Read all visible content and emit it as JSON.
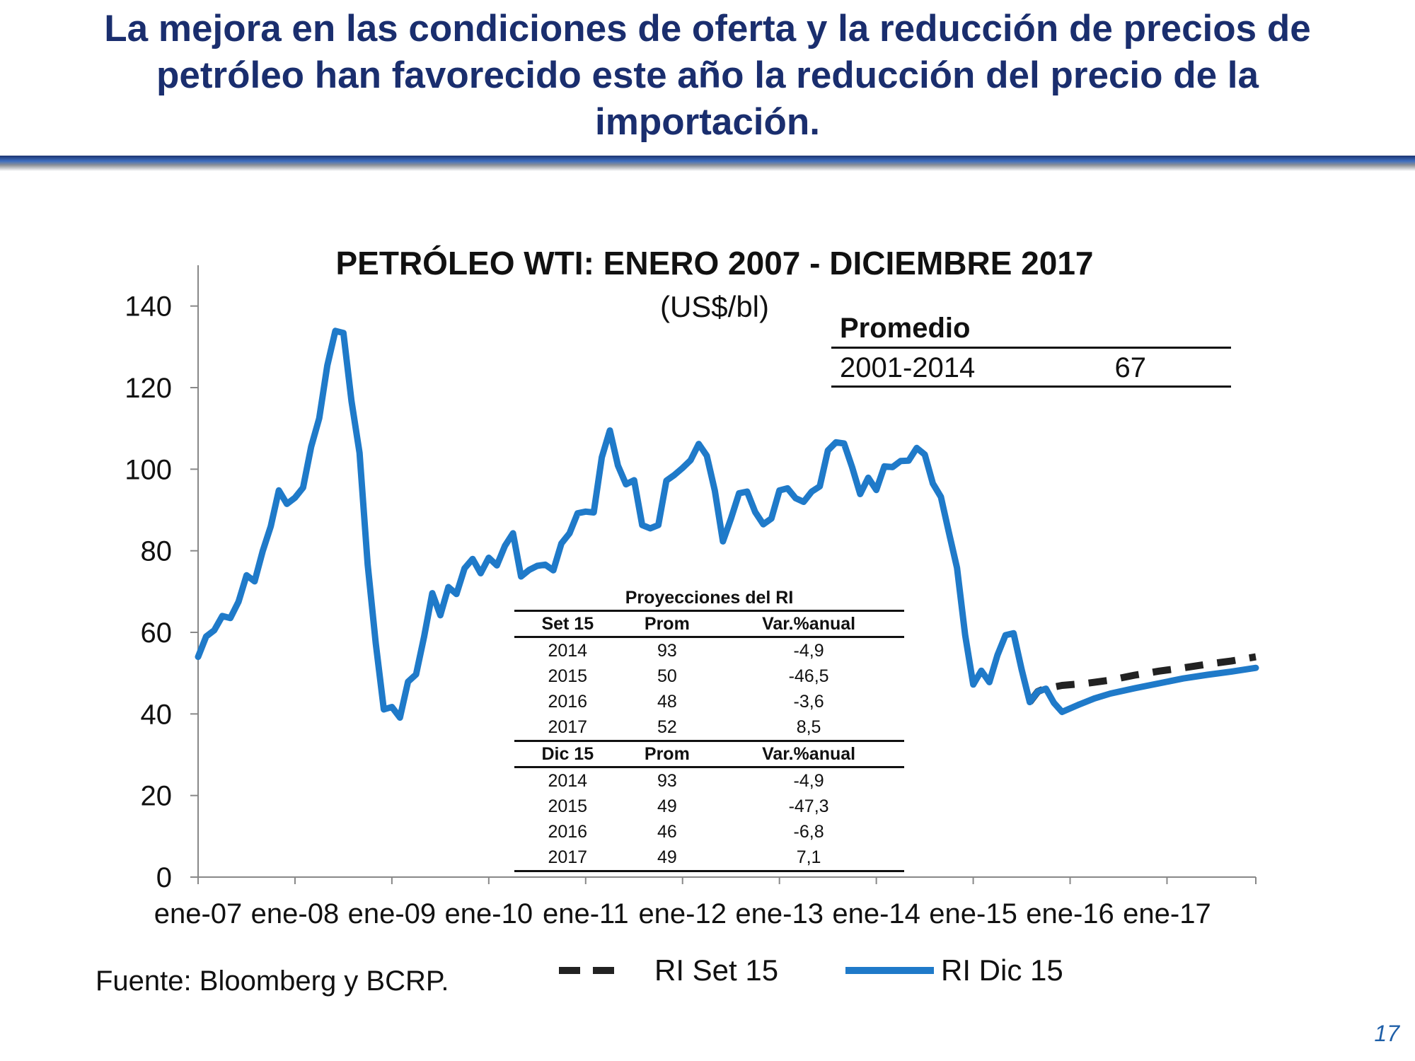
{
  "slide": {
    "title": "La mejora en las condiciones de oferta y la reducción de precios de petróleo han favorecido este año la reducción del precio de la importación.",
    "source": "Fuente: Bloomberg y BCRP.",
    "page_number": "17"
  },
  "colors": {
    "title": "#1a2e6e",
    "rule": "#2a4f9a",
    "dic15": "#1f7ac9",
    "set15": "#222222"
  },
  "promedio": {
    "header": "Promedio",
    "period": "2001-2014",
    "value": "67"
  },
  "projections": {
    "caption": "Proyecciones del RI",
    "columns": [
      "Prom",
      "Var.%anual"
    ],
    "groups": [
      {
        "label": "Set 15",
        "rows": [
          [
            "2014",
            "93",
            "-4,9"
          ],
          [
            "2015",
            "50",
            "-46,5"
          ],
          [
            "2016",
            "48",
            "-3,6"
          ],
          [
            "2017",
            "52",
            "8,5"
          ]
        ]
      },
      {
        "label": "Dic 15",
        "rows": [
          [
            "2014",
            "93",
            "-4,9"
          ],
          [
            "2015",
            "49",
            "-47,3"
          ],
          [
            "2016",
            "46",
            "-6,8"
          ],
          [
            "2017",
            "49",
            "7,1"
          ]
        ]
      }
    ]
  },
  "chart_data": {
    "type": "line",
    "title": "PETRÓLEO WTI: ENERO 2007 - DICIEMBRE 2017",
    "subtitle": "(US$/bl)",
    "ylim": [
      0,
      150
    ],
    "yticks": [
      0,
      20,
      40,
      60,
      80,
      100,
      120,
      140
    ],
    "xlim": [
      "2007-01",
      "2017-12"
    ],
    "xticks": [
      "ene-07",
      "ene-08",
      "ene-09",
      "ene-10",
      "ene-11",
      "ene-12",
      "ene-13",
      "ene-14",
      "ene-15",
      "ene-16",
      "ene-17"
    ],
    "grid": false,
    "legend_position": "bottom",
    "series": [
      {
        "name": "RI Set 15",
        "style": "dashed",
        "color": "#222222",
        "points": [
          [
            "2015-08",
            42.9
          ],
          [
            "2015-09",
            45.5
          ],
          [
            "2015-10",
            46.3
          ],
          [
            "2015-11",
            46.6
          ],
          [
            "2015-12",
            47.0
          ],
          [
            "2016-03",
            47.5
          ],
          [
            "2016-06",
            48.3
          ],
          [
            "2016-09",
            49.5
          ],
          [
            "2016-12",
            50.5
          ],
          [
            "2017-03",
            51.3
          ],
          [
            "2017-06",
            52.2
          ],
          [
            "2017-09",
            53.0
          ],
          [
            "2017-12",
            54.0
          ]
        ]
      },
      {
        "name": "RI Dic 15",
        "style": "solid",
        "color": "#1f7ac9",
        "points": [
          [
            "2007-01",
            54
          ],
          [
            "2007-02",
            59
          ],
          [
            "2007-03",
            60.5
          ],
          [
            "2007-04",
            64
          ],
          [
            "2007-05",
            63.5
          ],
          [
            "2007-06",
            67.5
          ],
          [
            "2007-07",
            74
          ],
          [
            "2007-08",
            72.5
          ],
          [
            "2007-09",
            79.9
          ],
          [
            "2007-10",
            86
          ],
          [
            "2007-11",
            94.8
          ],
          [
            "2007-12",
            91.5
          ],
          [
            "2008-01",
            93
          ],
          [
            "2008-02",
            95.5
          ],
          [
            "2008-03",
            105.5
          ],
          [
            "2008-04",
            112.5
          ],
          [
            "2008-05",
            125.4
          ],
          [
            "2008-06",
            133.9
          ],
          [
            "2008-07",
            133.4
          ],
          [
            "2008-08",
            116.7
          ],
          [
            "2008-09",
            104
          ],
          [
            "2008-10",
            76.6
          ],
          [
            "2008-11",
            57.3
          ],
          [
            "2008-12",
            41.1
          ],
          [
            "2009-01",
            41.7
          ],
          [
            "2009-02",
            39.1
          ],
          [
            "2009-03",
            47.9
          ],
          [
            "2009-04",
            49.7
          ],
          [
            "2009-05",
            59
          ],
          [
            "2009-06",
            69.6
          ],
          [
            "2009-07",
            64.2
          ],
          [
            "2009-08",
            71.1
          ],
          [
            "2009-09",
            69.4
          ],
          [
            "2009-10",
            75.7
          ],
          [
            "2009-11",
            78
          ],
          [
            "2009-12",
            74.5
          ],
          [
            "2010-01",
            78.3
          ],
          [
            "2010-02",
            76.4
          ],
          [
            "2010-03",
            81.2
          ],
          [
            "2010-04",
            84.3
          ],
          [
            "2010-05",
            73.7
          ],
          [
            "2010-06",
            75.3
          ],
          [
            "2010-07",
            76.3
          ],
          [
            "2010-08",
            76.6
          ],
          [
            "2010-09",
            75.2
          ],
          [
            "2010-10",
            81.8
          ],
          [
            "2010-11",
            84.3
          ],
          [
            "2010-12",
            89.2
          ],
          [
            "2011-01",
            89.6
          ],
          [
            "2011-02",
            89.4
          ],
          [
            "2011-03",
            102.9
          ],
          [
            "2011-04",
            109.5
          ],
          [
            "2011-05",
            100.9
          ],
          [
            "2011-06",
            96.3
          ],
          [
            "2011-07",
            97.3
          ],
          [
            "2011-08",
            86.3
          ],
          [
            "2011-09",
            85.5
          ],
          [
            "2011-10",
            86.3
          ],
          [
            "2011-11",
            97.2
          ],
          [
            "2011-12",
            98.6
          ],
          [
            "2012-01",
            100.3
          ],
          [
            "2012-02",
            102.2
          ],
          [
            "2012-03",
            106.2
          ],
          [
            "2012-04",
            103.3
          ],
          [
            "2012-05",
            94.7
          ],
          [
            "2012-06",
            82.3
          ],
          [
            "2012-07",
            87.9
          ],
          [
            "2012-08",
            94.1
          ],
          [
            "2012-09",
            94.5
          ],
          [
            "2012-10",
            89.5
          ],
          [
            "2012-11",
            86.5
          ],
          [
            "2012-12",
            87.9
          ],
          [
            "2013-01",
            94.8
          ],
          [
            "2013-02",
            95.3
          ],
          [
            "2013-03",
            92.9
          ],
          [
            "2013-04",
            92
          ],
          [
            "2013-05",
            94.5
          ],
          [
            "2013-06",
            95.8
          ],
          [
            "2013-07",
            104.6
          ],
          [
            "2013-08",
            106.6
          ],
          [
            "2013-09",
            106.3
          ],
          [
            "2013-10",
            100.5
          ],
          [
            "2013-11",
            93.9
          ],
          [
            "2013-12",
            97.9
          ],
          [
            "2014-01",
            94.9
          ],
          [
            "2014-02",
            100.7
          ],
          [
            "2014-03",
            100.5
          ],
          [
            "2014-04",
            102
          ],
          [
            "2014-05",
            102.1
          ],
          [
            "2014-06",
            105.2
          ],
          [
            "2014-07",
            103.6
          ],
          [
            "2014-08",
            96.5
          ],
          [
            "2014-09",
            93.2
          ],
          [
            "2014-10",
            84.4
          ],
          [
            "2014-11",
            75.8
          ],
          [
            "2014-12",
            59.3
          ],
          [
            "2015-01",
            47.2
          ],
          [
            "2015-02",
            50.6
          ],
          [
            "2015-03",
            47.8
          ],
          [
            "2015-04",
            54.4
          ],
          [
            "2015-05",
            59.3
          ],
          [
            "2015-06",
            59.8
          ],
          [
            "2015-07",
            50.9
          ],
          [
            "2015-08",
            42.9
          ],
          [
            "2015-09",
            45.5
          ],
          [
            "2015-10",
            46.2
          ],
          [
            "2015-11",
            42.7
          ],
          [
            "2015-12",
            40.5
          ],
          [
            "2016-02",
            42.2
          ],
          [
            "2016-04",
            43.8
          ],
          [
            "2016-06",
            45
          ],
          [
            "2016-09",
            46.3
          ],
          [
            "2016-12",
            47.5
          ],
          [
            "2017-03",
            48.7
          ],
          [
            "2017-06",
            49.6
          ],
          [
            "2017-09",
            50.4
          ],
          [
            "2017-12",
            51.3
          ]
        ]
      }
    ]
  }
}
